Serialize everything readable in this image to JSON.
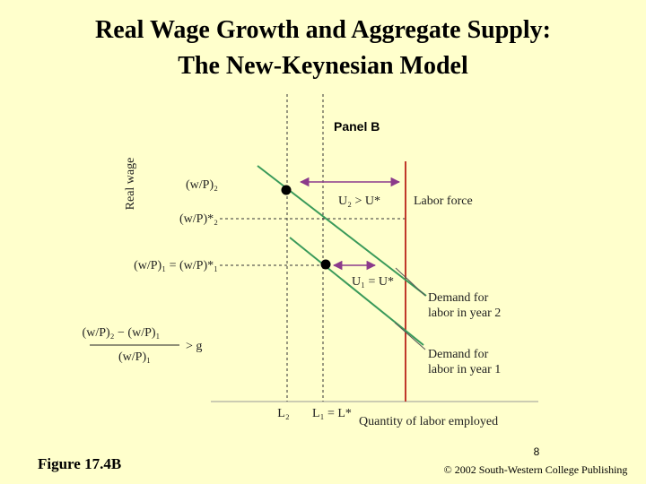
{
  "header": {
    "title_line1": "Real Wage Growth and Aggregate Supply:",
    "title_line2": "The New-Keynesian Model"
  },
  "diagram": {
    "panel": "Panel B",
    "y_axis_label": "Real wage",
    "x_axis_label": "Quantity of labor employed",
    "y_labels": [
      "(w/P)₂",
      "(w/P)*₂",
      "(w/P)₁ = (w/P)*₁"
    ],
    "growth_numerator": "(w/P)₂ − (w/P)₁",
    "growth_denominator": "(w/P)₁",
    "growth_relation": "> g",
    "x_labels": [
      "L₂",
      "L₁ = L*"
    ],
    "annotations": {
      "gap": "U₂ > U*",
      "labor_force": "Labor force",
      "equilibrium": "U₁ = U*"
    },
    "demand_year2": [
      "Demand for",
      "labor in year 2"
    ],
    "demand_year1": [
      "Demand for",
      "labor in year 1"
    ]
  },
  "footer": {
    "figure": "Figure 17.4B",
    "page": "8",
    "copyright": "© 2002 South-Western College Publishing"
  }
}
